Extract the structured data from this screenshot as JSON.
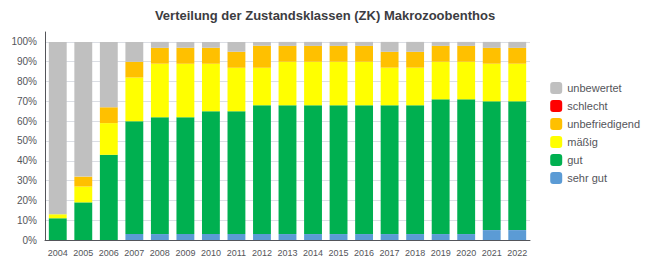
{
  "chart_data": {
    "type": "bar",
    "title": "Verteilung der Zustandsklassen (ZK) Makrozoobenthos",
    "categories": [
      "2004",
      "2005",
      "2006",
      "2007",
      "2008",
      "2009",
      "2010",
      "2011",
      "2012",
      "2013",
      "2014",
      "2015",
      "2016",
      "2017",
      "2018",
      "2019",
      "2020",
      "2021",
      "2022"
    ],
    "series": [
      {
        "name": "sehr gut",
        "color": "#5b9bd5",
        "values": [
          0,
          0,
          0,
          3,
          3,
          3,
          3,
          3,
          3,
          3,
          3,
          3,
          3,
          3,
          3,
          3,
          3,
          5,
          5
        ]
      },
      {
        "name": "gut",
        "color": "#00b050",
        "values": [
          11,
          19,
          43,
          57,
          59,
          59,
          62,
          62,
          65,
          65,
          65,
          65,
          65,
          65,
          65,
          68,
          68,
          65,
          65
        ]
      },
      {
        "name": "mäßig",
        "color": "#ffff00",
        "values": [
          2,
          8,
          16,
          22,
          27,
          27,
          24,
          22,
          19,
          22,
          22,
          22,
          22,
          19,
          19,
          19,
          19,
          19,
          19
        ]
      },
      {
        "name": "unbefriedigend",
        "color": "#ffc000",
        "values": [
          0,
          5,
          8,
          8,
          8,
          8,
          8,
          8,
          11,
          8,
          8,
          8,
          8,
          8,
          8,
          8,
          8,
          8,
          8
        ]
      },
      {
        "name": "schlecht",
        "color": "#ff0000",
        "values": [
          0,
          0,
          0,
          0,
          0,
          0,
          0,
          0,
          0,
          0,
          0,
          0,
          0,
          0,
          0,
          0,
          0,
          0,
          0
        ]
      },
      {
        "name": "unbewertet",
        "color": "#c0c0c0",
        "values": [
          87,
          68,
          33,
          10,
          3,
          3,
          3,
          5,
          2,
          2,
          2,
          2,
          2,
          5,
          5,
          2,
          2,
          3,
          3
        ]
      }
    ],
    "ylim": [
      0,
      105
    ],
    "yticks": [
      {
        "value": 0,
        "label": "0%"
      },
      {
        "value": 10,
        "label": "10%"
      },
      {
        "value": 20,
        "label": "20%"
      },
      {
        "value": 30,
        "label": "30%"
      },
      {
        "value": 40,
        "label": "40%"
      },
      {
        "value": 50,
        "label": "50%"
      },
      {
        "value": 60,
        "label": "60%"
      },
      {
        "value": 70,
        "label": "70%"
      },
      {
        "value": 80,
        "label": "80%"
      },
      {
        "value": 90,
        "label": "90%"
      },
      {
        "value": 100,
        "label": "100%"
      }
    ],
    "stacked": true,
    "grid": true,
    "legend": "right"
  }
}
